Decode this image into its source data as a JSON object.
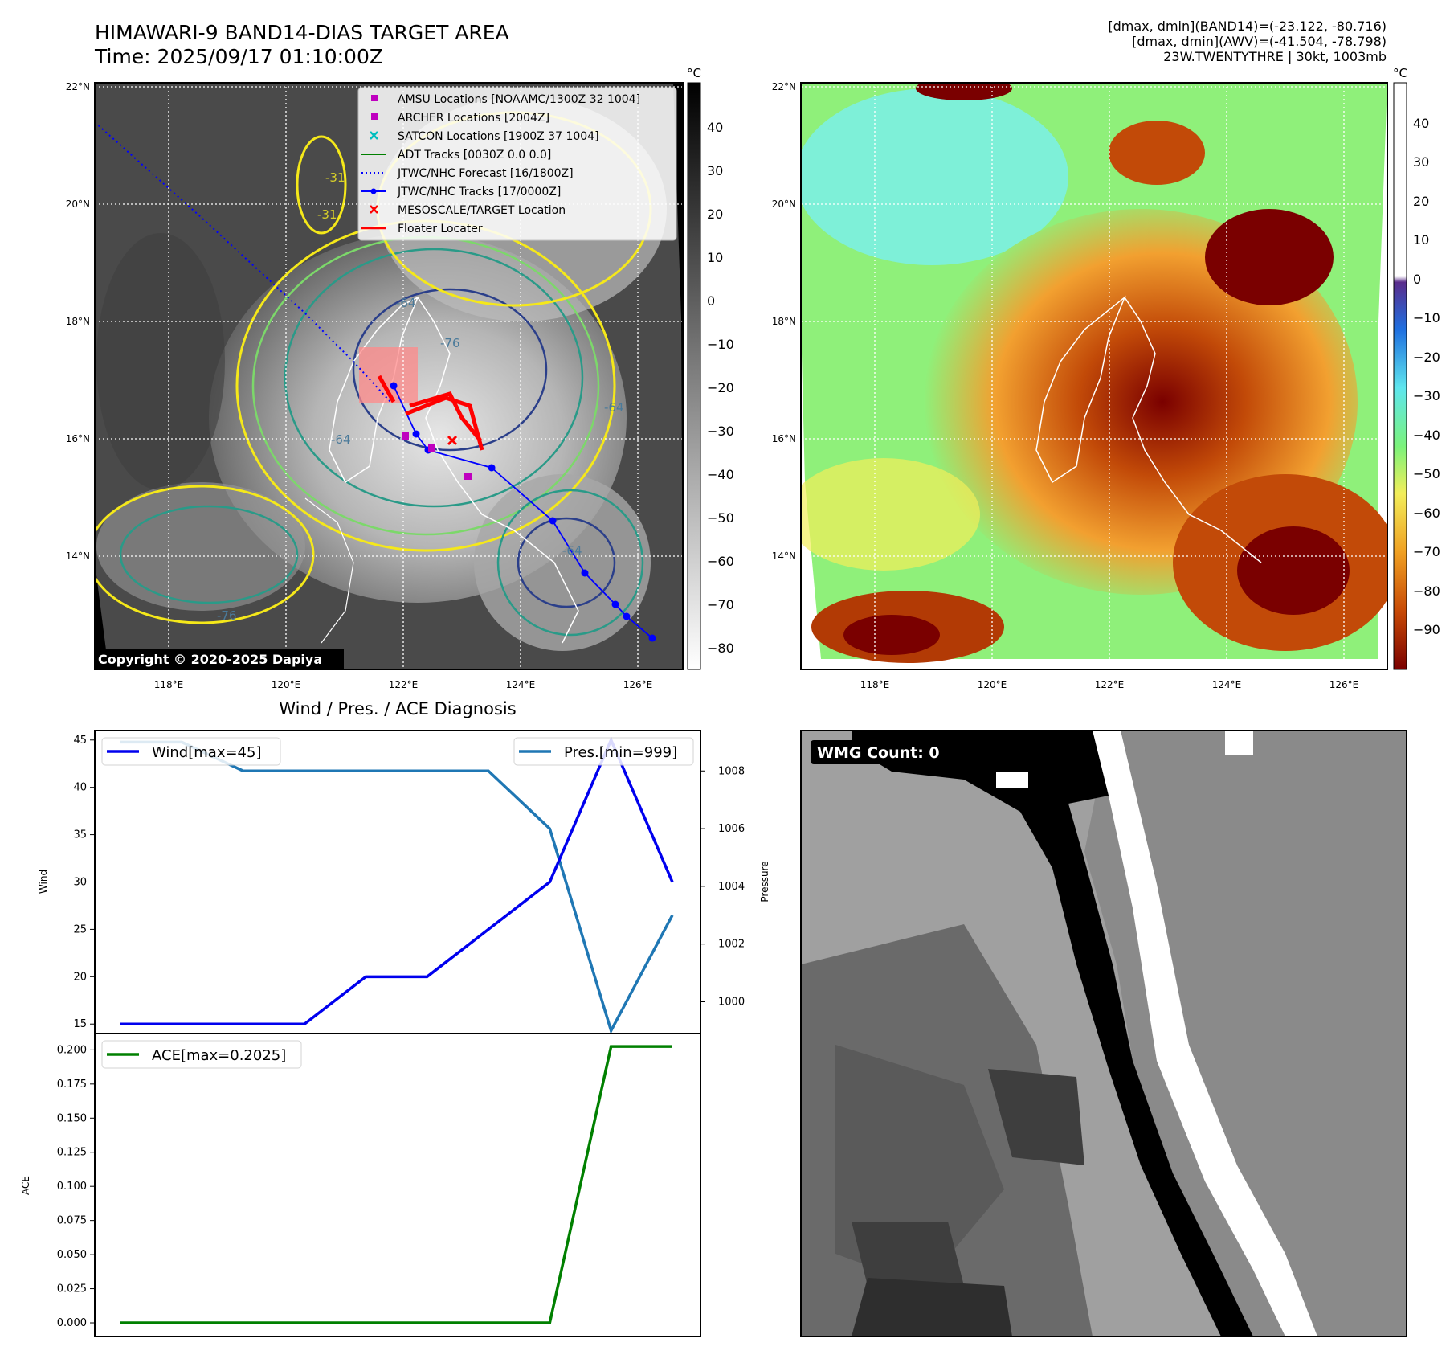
{
  "header": {
    "title_line1": "HIMAWARI-9 BAND14-DIAS TARGET AREA",
    "title_line2": "Time: 2025/09/17 01:10:00Z",
    "stats_line1": "[dmax, dmin](BAND14)=(-23.122, -80.716)",
    "stats_line2": "[dmax, dmin](AWV)=(-41.504, -78.798)",
    "stats_line3": "23W.TWENTYTHRE | 30kt, 1003mb"
  },
  "map_left": {
    "lat_labels": [
      "22°N",
      "20°N",
      "18°N",
      "16°N",
      "14°N"
    ],
    "lon_labels": [
      "118°E",
      "120°E",
      "122°E",
      "124°E",
      "126°E"
    ],
    "colorbar_unit": "°C",
    "colorbar_ticks": [
      "40",
      "30",
      "20",
      "10",
      "0",
      "−10",
      "−20",
      "−30",
      "−40",
      "−50",
      "−60",
      "−70",
      "−80"
    ],
    "copyright": "Copyright © 2020-2025 Dapiya",
    "contour_labels": [
      "-64",
      "-76",
      "-64",
      "-64",
      "-76",
      "-31",
      "-31",
      "-64"
    ],
    "legend": [
      {
        "label": "AMSU Locations [NOAAMC/1300Z 32 1004]",
        "color": "#bf00bf",
        "symbol": "square"
      },
      {
        "label": "ARCHER Locations [2004Z]",
        "color": "#bf00bf",
        "symbol": "square"
      },
      {
        "label": "SATCON Locations [1900Z 37 1004]",
        "color": "#00bfbf",
        "symbol": "x"
      },
      {
        "label": "ADT Tracks [0030Z 0.0 0.0]",
        "color": "#008000",
        "symbol": "line"
      },
      {
        "label": "JTWC/NHC Forecast [16/1800Z]",
        "color": "#0000ff",
        "symbol": "dotted"
      },
      {
        "label": "JTWC/NHC Tracks [17/0000Z]",
        "color": "#0000ff",
        "symbol": "line-dot"
      },
      {
        "label": "MESOSCALE/TARGET Location",
        "color": "#ff0000",
        "symbol": "x"
      },
      {
        "label": "Floater Locater",
        "color": "#ff0000",
        "symbol": "line"
      }
    ]
  },
  "map_right": {
    "lat_labels": [
      "22°N",
      "20°N",
      "18°N",
      "16°N",
      "14°N"
    ],
    "lon_labels": [
      "118°E",
      "120°E",
      "122°E",
      "124°E",
      "126°E"
    ],
    "colorbar_unit": "°C",
    "colorbar_ticks": [
      "40",
      "30",
      "20",
      "10",
      "0",
      "−10",
      "−20",
      "−30",
      "−40",
      "−50",
      "−60",
      "−70",
      "−80",
      "−90"
    ]
  },
  "wmg_panel": {
    "label": "WMG Count: 0"
  },
  "chart_data": [
    {
      "type": "line",
      "title": "Wind / Pres. / ACE Diagnosis",
      "ylabel": "Wind",
      "ylabel_right": "Pressure",
      "x": [
        0,
        1,
        2,
        3,
        4,
        5,
        6,
        7,
        8,
        9
      ],
      "ylim": [
        14,
        46
      ],
      "yticks": [
        15,
        20,
        25,
        30,
        35,
        40,
        45
      ],
      "ylim_right": [
        998.9,
        1009.4
      ],
      "yticks_right": [
        1000,
        1002,
        1004,
        1006,
        1008
      ],
      "series": [
        {
          "name": "Wind[max=45]",
          "axis": "left",
          "color": "#0000ee",
          "values": [
            15,
            15,
            15,
            15,
            20,
            20,
            25,
            30,
            45,
            30
          ]
        },
        {
          "name": "Pres.[min=999]",
          "axis": "right",
          "color": "#1f77b4",
          "values": [
            1009,
            1009,
            1008,
            1008,
            1008,
            1008,
            1008,
            1006,
            999,
            1003
          ]
        }
      ],
      "legend": [
        "top-left",
        "top-right"
      ]
    },
    {
      "type": "line",
      "ylabel": "ACE",
      "x": [
        0,
        1,
        2,
        3,
        4,
        5,
        6,
        7,
        8,
        9
      ],
      "ylim": [
        -0.01,
        0.212
      ],
      "yticks": [
        "0.000",
        "0.025",
        "0.050",
        "0.075",
        "0.100",
        "0.125",
        "0.150",
        "0.175",
        "0.200"
      ],
      "series": [
        {
          "name": "ACE[max=0.2025]",
          "color": "#008000",
          "values": [
            0,
            0,
            0,
            0,
            0,
            0,
            0,
            0,
            0.2025,
            0.2025
          ]
        }
      ],
      "legend": "top-left"
    }
  ]
}
